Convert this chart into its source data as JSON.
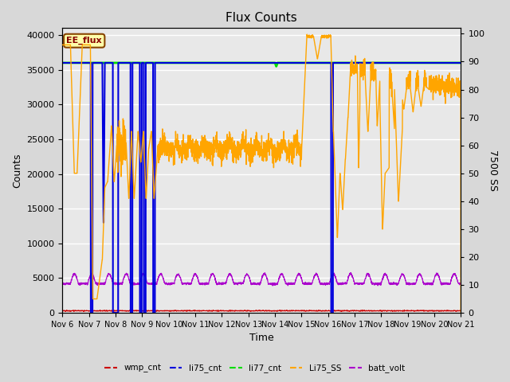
{
  "title": "Flux Counts",
  "xlabel": "Time",
  "ylabel_left": "Counts",
  "ylabel_right": "7500 SS",
  "ylim_left": [
    0,
    41000
  ],
  "ylim_right": [
    0,
    102
  ],
  "bg_color": "#d8d8d8",
  "plot_bg_color": "#e8e8e8",
  "annotation_text": "EE_flux",
  "annotation_box_color": "#ffffaa",
  "annotation_border_color": "#884400",
  "li77_cnt_value": 36000,
  "li77_cnt_color": "#00dd00",
  "wmp_cnt_color": "#cc0000",
  "li75_cnt_color": "#0000dd",
  "Li75_SS_color": "#ffa500",
  "batt_volt_color": "#aa00cc",
  "legend_entries": [
    "wmp_cnt",
    "li75_cnt",
    "li77_cnt",
    "Li75_SS",
    "batt_volt"
  ],
  "yticks_left": [
    0,
    5000,
    10000,
    15000,
    20000,
    25000,
    30000,
    35000,
    40000
  ],
  "yticks_right": [
    0,
    10,
    20,
    30,
    40,
    50,
    60,
    70,
    80,
    90,
    100
  ]
}
